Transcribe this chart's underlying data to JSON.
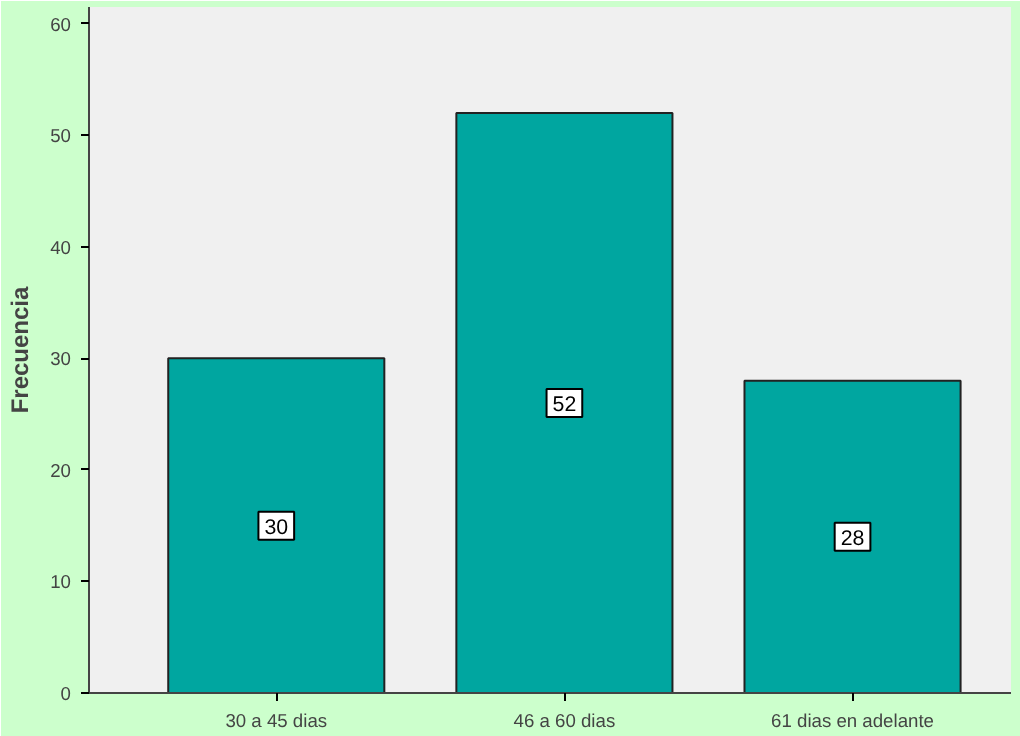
{
  "chart_data": {
    "type": "bar",
    "ylabel": "Frecuencia",
    "categories": [
      "30 a 45 dias",
      "46 a 60 dias",
      "61 dias en adelante"
    ],
    "values": [
      30,
      52,
      28
    ],
    "color": "#00a6a0",
    "ylim": [
      0,
      61.5
    ],
    "yticks": [
      0,
      10,
      20,
      30,
      40,
      50,
      60
    ],
    "grid": false,
    "data_labels": true
  }
}
